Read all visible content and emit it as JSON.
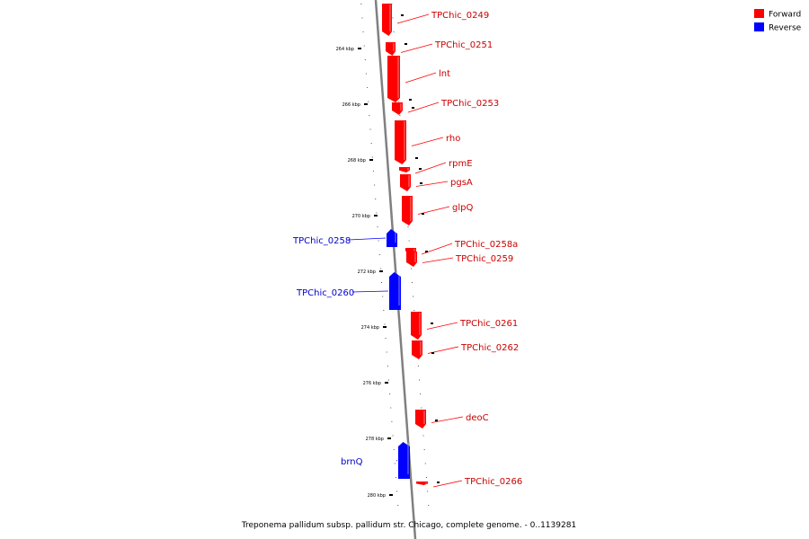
{
  "legend": [
    {
      "label": "Forward",
      "color": "#ff0000"
    },
    {
      "label": "Reverse",
      "color": "#0000ff"
    }
  ],
  "caption": "Treponema pallidum subsp. pallidum str. Chicago, complete genome. - 0..1139281",
  "ticks": [
    "264 kbp",
    "266 kbp",
    "268 kbp",
    "270 kbp",
    "272 kbp",
    "274 kbp",
    "276 kbp",
    "278 kbp",
    "280 kbp"
  ],
  "genes": [
    {
      "name": "TPChic_0249",
      "strand": "forward"
    },
    {
      "name": "TPChic_0251",
      "strand": "forward"
    },
    {
      "name": "lnt",
      "strand": "forward"
    },
    {
      "name": "TPChic_0253",
      "strand": "forward"
    },
    {
      "name": "rho",
      "strand": "forward"
    },
    {
      "name": "rpmE",
      "strand": "forward"
    },
    {
      "name": "pgsA",
      "strand": "forward"
    },
    {
      "name": "glpQ",
      "strand": "forward"
    },
    {
      "name": "TPChic_0258",
      "strand": "reverse"
    },
    {
      "name": "TPChic_0258a",
      "strand": "forward"
    },
    {
      "name": "TPChic_0259",
      "strand": "forward"
    },
    {
      "name": "TPChic_0260",
      "strand": "reverse"
    },
    {
      "name": "TPChic_0261",
      "strand": "forward"
    },
    {
      "name": "TPChic_0262",
      "strand": "forward"
    },
    {
      "name": "deoC",
      "strand": "forward"
    },
    {
      "name": "brnQ",
      "strand": "reverse"
    },
    {
      "name": "TPChic_0266",
      "strand": "forward"
    }
  ],
  "colors": {
    "forward": "#ff0000",
    "reverse": "#0000ff",
    "axis": "#808080"
  }
}
